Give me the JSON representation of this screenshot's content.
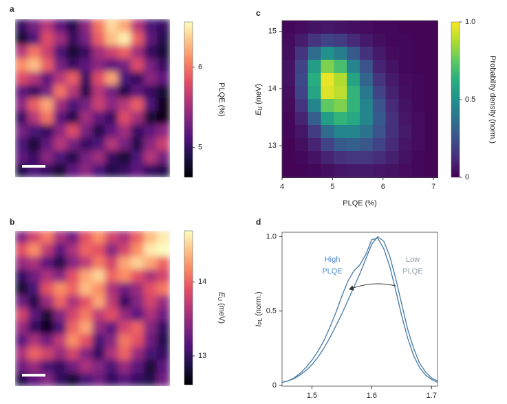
{
  "chart_data": [
    {
      "type": "heatmap",
      "panel": "a",
      "colormap": "magma",
      "zlim": [
        4.63,
        6.56
      ],
      "zticks": [
        5,
        6
      ],
      "colorbar_label": "PLQE (%)",
      "z": [
        [
          5.0,
          5.3,
          5.6,
          5.2,
          4.9,
          5.4,
          6.0,
          6.4,
          6.2,
          5.6,
          5.1,
          5.0
        ],
        [
          4.8,
          5.1,
          5.8,
          5.5,
          5.0,
          5.3,
          5.9,
          6.3,
          6.5,
          5.9,
          5.2,
          4.9
        ],
        [
          5.6,
          6.0,
          5.7,
          5.1,
          4.8,
          5.0,
          5.5,
          5.7,
          5.9,
          5.5,
          5.0,
          4.8
        ],
        [
          6.1,
          6.3,
          5.9,
          5.3,
          5.0,
          5.2,
          5.4,
          5.2,
          5.3,
          5.8,
          5.3,
          5.0
        ],
        [
          5.8,
          5.6,
          5.2,
          5.6,
          5.9,
          5.0,
          5.8,
          6.2,
          5.1,
          5.0,
          5.4,
          5.2
        ],
        [
          5.2,
          5.0,
          5.3,
          6.0,
          5.6,
          4.9,
          5.6,
          5.3,
          4.9,
          5.2,
          5.0,
          4.8
        ],
        [
          5.4,
          5.9,
          6.2,
          5.5,
          5.1,
          5.3,
          5.7,
          5.4,
          5.6,
          5.9,
          5.1,
          4.7
        ],
        [
          5.0,
          5.6,
          6.0,
          5.2,
          4.9,
          5.5,
          5.2,
          5.0,
          5.8,
          5.5,
          4.8,
          4.7
        ],
        [
          5.3,
          5.1,
          5.0,
          5.4,
          5.8,
          5.3,
          4.9,
          5.2,
          5.5,
          5.0,
          5.2,
          5.4
        ],
        [
          5.1,
          4.8,
          5.2,
          5.6,
          5.3,
          5.0,
          5.1,
          5.6,
          5.3,
          4.9,
          5.4,
          5.7
        ],
        [
          5.2,
          5.0,
          5.4,
          5.1,
          4.9,
          5.3,
          5.5,
          5.0,
          4.8,
          5.1,
          5.6,
          5.3
        ],
        [
          4.9,
          5.1,
          5.0,
          4.8,
          5.2,
          5.4,
          5.1,
          4.9,
          5.0,
          5.2,
          5.0,
          4.9
        ]
      ]
    },
    {
      "type": "heatmap",
      "panel": "b",
      "colormap": "magma",
      "zlim": [
        12.61,
        14.69
      ],
      "zticks": [
        13,
        14
      ],
      "colorbar_label": {
        "symbol": "E",
        "subscript": "U",
        "unit": "(meV)"
      },
      "z": [
        [
          13.4,
          13.8,
          14.1,
          13.6,
          13.3,
          13.9,
          14.2,
          13.8,
          13.6,
          14.0,
          14.4,
          14.6
        ],
        [
          13.9,
          14.2,
          13.7,
          13.2,
          13.6,
          14.0,
          13.9,
          13.4,
          13.8,
          14.2,
          14.6,
          14.7
        ],
        [
          13.5,
          13.6,
          13.2,
          12.9,
          13.4,
          13.7,
          14.1,
          13.8,
          14.3,
          14.5,
          14.3,
          14.0
        ],
        [
          13.0,
          13.3,
          13.6,
          13.4,
          13.9,
          14.3,
          14.5,
          14.0,
          14.2,
          13.9,
          13.6,
          13.8
        ],
        [
          12.8,
          13.1,
          13.9,
          14.2,
          14.0,
          14.4,
          14.2,
          13.6,
          13.3,
          13.5,
          13.9,
          14.1
        ],
        [
          13.3,
          12.9,
          13.5,
          14.0,
          13.6,
          13.9,
          14.3,
          13.7,
          13.0,
          13.4,
          13.8,
          13.5
        ],
        [
          13.8,
          13.2,
          12.8,
          13.4,
          13.8,
          14.1,
          13.7,
          13.9,
          13.5,
          13.2,
          13.6,
          13.3
        ],
        [
          13.5,
          13.0,
          12.7,
          13.1,
          14.0,
          14.3,
          13.5,
          13.2,
          13.8,
          14.0,
          13.4,
          13.0
        ],
        [
          13.2,
          13.6,
          13.3,
          13.7,
          14.2,
          13.9,
          13.1,
          13.4,
          14.1,
          13.9,
          13.3,
          12.9
        ],
        [
          13.6,
          14.0,
          13.8,
          13.5,
          13.8,
          13.4,
          13.0,
          13.6,
          14.0,
          13.5,
          13.1,
          13.0
        ],
        [
          13.3,
          13.5,
          13.1,
          13.0,
          13.3,
          13.6,
          13.4,
          13.1,
          13.5,
          13.2,
          12.8,
          13.2
        ],
        [
          12.9,
          13.2,
          13.4,
          13.0,
          12.8,
          13.1,
          13.3,
          13.0,
          13.2,
          13.0,
          12.9,
          13.3
        ]
      ]
    },
    {
      "type": "heatmap",
      "panel": "c",
      "colormap": "viridis",
      "xlim": [
        4,
        7.08
      ],
      "xticks": [
        4,
        5,
        6,
        7
      ],
      "xlabel": "PLQE (%)",
      "ylim": [
        12.45,
        15.19
      ],
      "yticks": [
        13,
        14,
        15
      ],
      "ylabel": {
        "symbol": "E",
        "subscript": "U",
        "unit": "(meV)"
      },
      "zlim": [
        0,
        1
      ],
      "zticks": [
        0,
        0.5,
        {
          "value": 1,
          "label": "1.0"
        }
      ],
      "colorbar_label": "Probability density (norm.)",
      "z": [
        [
          0.02,
          0.03,
          0.05,
          0.06,
          0.05,
          0.04,
          0.03,
          0.02,
          0.02,
          0.01,
          0.01,
          0.01
        ],
        [
          0.03,
          0.08,
          0.15,
          0.2,
          0.18,
          0.12,
          0.07,
          0.04,
          0.02,
          0.02,
          0.01,
          0.01
        ],
        [
          0.04,
          0.15,
          0.35,
          0.5,
          0.42,
          0.28,
          0.14,
          0.07,
          0.03,
          0.02,
          0.01,
          0.01
        ],
        [
          0.05,
          0.2,
          0.55,
          0.8,
          0.7,
          0.45,
          0.25,
          0.1,
          0.05,
          0.02,
          0.01,
          0.01
        ],
        [
          0.05,
          0.22,
          0.62,
          0.97,
          0.88,
          0.58,
          0.32,
          0.15,
          0.07,
          0.03,
          0.02,
          0.01
        ],
        [
          0.04,
          0.2,
          0.58,
          0.95,
          0.9,
          0.65,
          0.4,
          0.2,
          0.09,
          0.04,
          0.02,
          0.01
        ],
        [
          0.03,
          0.15,
          0.45,
          0.75,
          0.8,
          0.65,
          0.45,
          0.25,
          0.12,
          0.05,
          0.02,
          0.01
        ],
        [
          0.02,
          0.1,
          0.3,
          0.55,
          0.65,
          0.6,
          0.45,
          0.28,
          0.14,
          0.06,
          0.03,
          0.01
        ],
        [
          0.02,
          0.06,
          0.18,
          0.35,
          0.45,
          0.45,
          0.38,
          0.25,
          0.14,
          0.07,
          0.03,
          0.01
        ],
        [
          0.01,
          0.04,
          0.1,
          0.2,
          0.28,
          0.3,
          0.27,
          0.2,
          0.12,
          0.06,
          0.03,
          0.01
        ],
        [
          0.01,
          0.02,
          0.05,
          0.1,
          0.14,
          0.16,
          0.16,
          0.13,
          0.09,
          0.05,
          0.02,
          0.01
        ],
        [
          0.01,
          0.01,
          0.02,
          0.04,
          0.06,
          0.07,
          0.07,
          0.06,
          0.05,
          0.03,
          0.02,
          0.01
        ]
      ]
    },
    {
      "type": "line",
      "panel": "d",
      "x": [
        1.45,
        1.46,
        1.47,
        1.48,
        1.49,
        1.5,
        1.51,
        1.52,
        1.53,
        1.54,
        1.55,
        1.56,
        1.57,
        1.58,
        1.59,
        1.6,
        1.61,
        1.62,
        1.63,
        1.64,
        1.65,
        1.66,
        1.67,
        1.68,
        1.69,
        1.7,
        1.71
      ],
      "xlim": [
        1.45,
        1.71
      ],
      "xticks": [
        1.5,
        1.6,
        1.7
      ],
      "ylim": [
        -0.005,
        1.03
      ],
      "yticks": [
        0,
        0.5,
        {
          "value": 1,
          "label": "1.0"
        }
      ],
      "ylabel": {
        "symbol": "I",
        "subscript": "PL",
        "unit": "(norm.)"
      },
      "series": [
        {
          "color": "#4f7fa8",
          "values": [
            0.02,
            0.03,
            0.05,
            0.08,
            0.12,
            0.17,
            0.23,
            0.3,
            0.39,
            0.49,
            0.6,
            0.7,
            0.77,
            0.81,
            0.88,
            0.98,
            0.99,
            0.92,
            0.8,
            0.64,
            0.47,
            0.32,
            0.2,
            0.12,
            0.07,
            0.04,
            0.02
          ]
        },
        {
          "color": "#4f7fa8",
          "values": [
            0.02,
            0.03,
            0.045,
            0.07,
            0.1,
            0.14,
            0.19,
            0.25,
            0.32,
            0.4,
            0.48,
            0.57,
            0.66,
            0.75,
            0.85,
            0.95,
            1.0,
            0.97,
            0.87,
            0.72,
            0.55,
            0.38,
            0.25,
            0.15,
            0.09,
            0.05,
            0.03
          ]
        }
      ],
      "annotations": [
        {
          "lines": [
            "High",
            "PLQE"
          ],
          "color": "#4a86c5"
        },
        {
          "lines": [
            "Low",
            "PLQE"
          ],
          "color": "#8e9aa6"
        }
      ]
    }
  ]
}
